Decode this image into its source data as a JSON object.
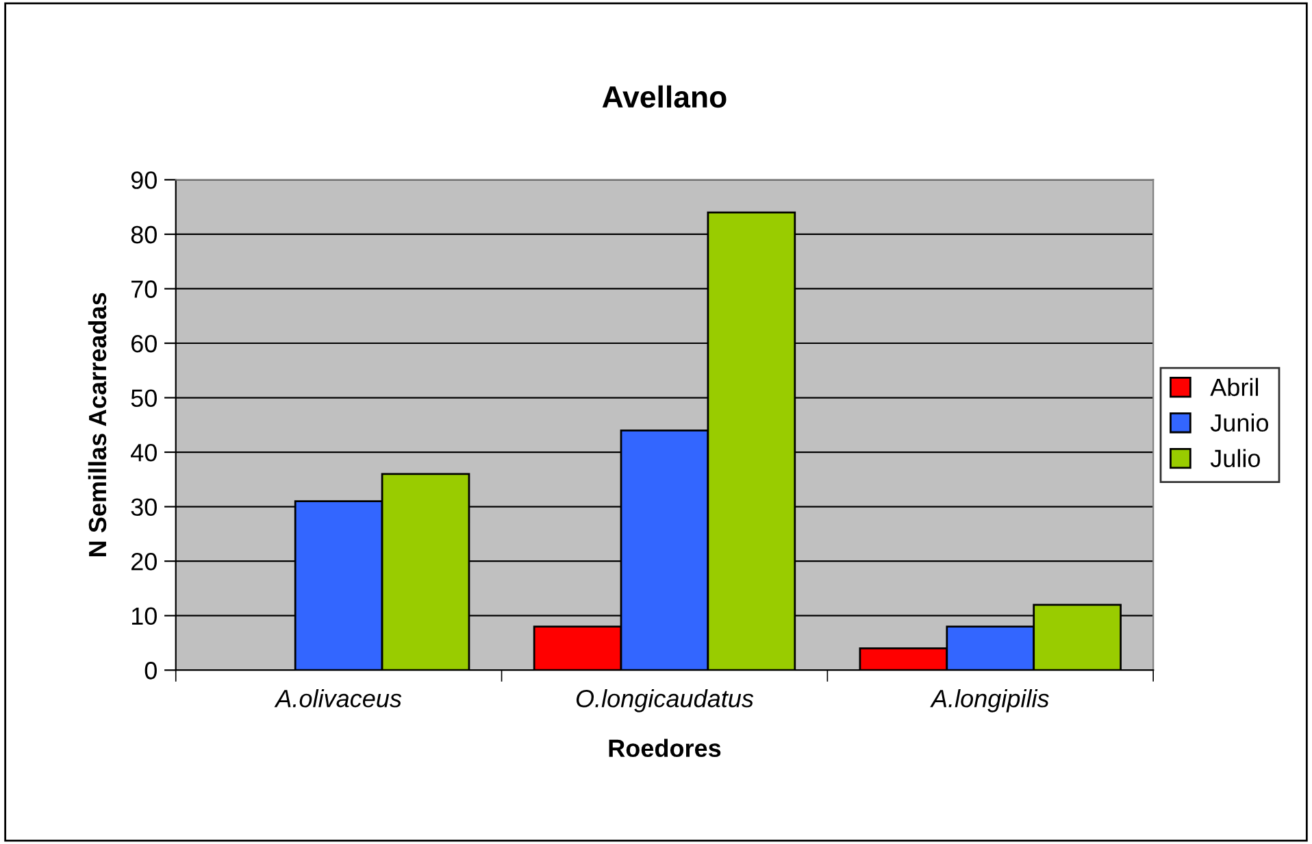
{
  "chart_data": {
    "type": "bar",
    "title": "Avellano",
    "xlabel": "Roedores",
    "ylabel": "N Semillas Acarreadas",
    "categories": [
      "A.olivaceus",
      "O.longicaudatus",
      "A.longipilis"
    ],
    "series": [
      {
        "name": "Abril",
        "color": "#ff0000",
        "values": [
          null,
          8,
          4
        ]
      },
      {
        "name": "Junio",
        "color": "#3366ff",
        "values": [
          31,
          44,
          8
        ]
      },
      {
        "name": "Julio",
        "color": "#99cc00",
        "values": [
          36,
          84,
          12
        ]
      }
    ],
    "ylim": [
      0,
      90
    ],
    "yticks": [
      0,
      10,
      20,
      30,
      40,
      50,
      60,
      70,
      80,
      90
    ],
    "grid": "y",
    "legend": "right"
  }
}
